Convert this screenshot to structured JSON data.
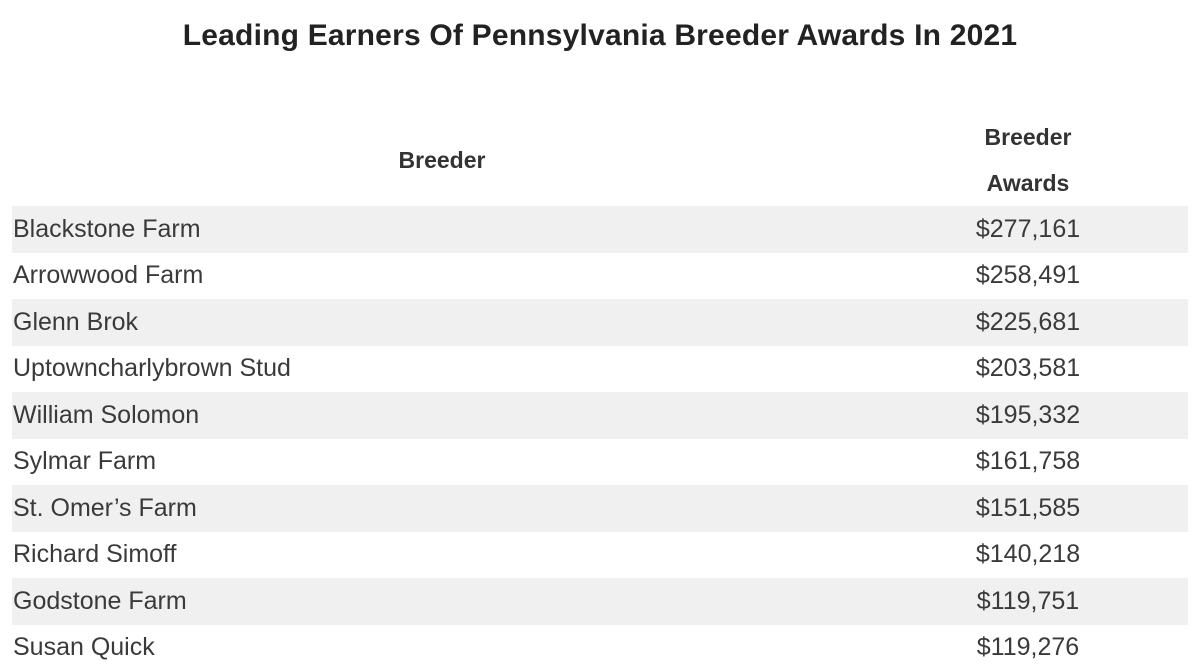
{
  "title": "Leading Earners Of Pennsylvania Breeder Awards In 2021",
  "chart_data": {
    "type": "table",
    "title": "Leading Earners Of Pennsylvania Breeder Awards In 2021",
    "columns": [
      "Breeder",
      "Breeder Awards"
    ],
    "column_header_lines": {
      "breeder": "Breeder",
      "awards_line1": "Breeder",
      "awards_line2": "Awards"
    },
    "rows": [
      {
        "breeder": "Blackstone Farm",
        "awards": "$277,161",
        "value": 277161
      },
      {
        "breeder": "Arrowwood Farm",
        "awards": "$258,491",
        "value": 258491
      },
      {
        "breeder": "Glenn Brok",
        "awards": "$225,681",
        "value": 225681
      },
      {
        "breeder": "Uptowncharlybrown Stud",
        "awards": "$203,581",
        "value": 203581
      },
      {
        "breeder": "William Solomon",
        "awards": "$195,332",
        "value": 195332
      },
      {
        "breeder": "Sylmar Farm",
        "awards": "$161,758",
        "value": 161758
      },
      {
        "breeder": "St. Omer’s Farm",
        "awards": "$151,585",
        "value": 151585
      },
      {
        "breeder": "Richard Simoff",
        "awards": "$140,218",
        "value": 140218
      },
      {
        "breeder": "Godstone Farm",
        "awards": "$119,751",
        "value": 119751
      },
      {
        "breeder": "Susan Quick",
        "awards": "$119,276",
        "value": 119276
      }
    ]
  },
  "colors": {
    "stripe": "#f0f0f0",
    "text": "#333333",
    "background": "#ffffff"
  }
}
